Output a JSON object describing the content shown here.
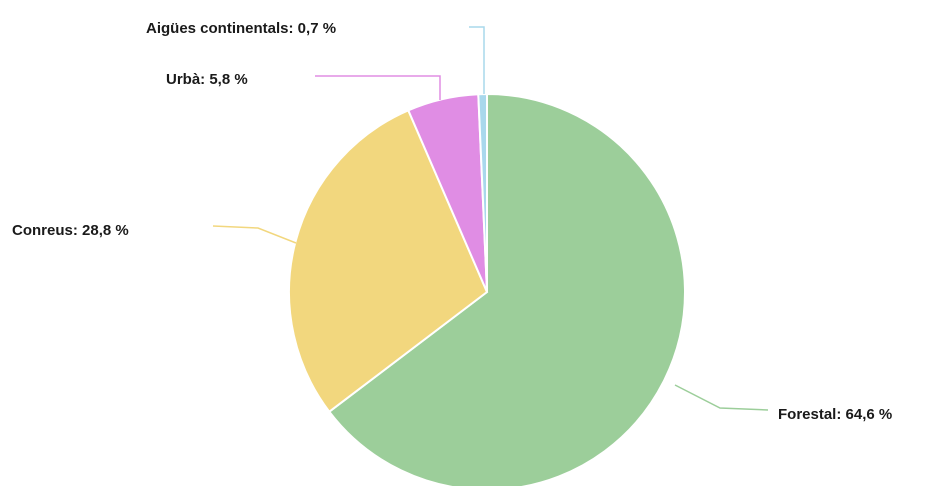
{
  "chart_data": {
    "type": "pie",
    "title": "",
    "slices": [
      {
        "name": "Forestal",
        "value": 64.6,
        "label": "Forestal: 64,6 %",
        "color": "#9cce9a"
      },
      {
        "name": "Conreus",
        "value": 28.8,
        "label": "Conreus: 28,8 %",
        "color": "#f2d77e"
      },
      {
        "name": "Urbà",
        "value": 5.8,
        "label": "Urbà: 5,8 %",
        "color": "#e08de4"
      },
      {
        "name": "Aigües continentals",
        "value": 0.7,
        "label": "Aigües continentals: 0,7 %",
        "color": "#a9d8ec"
      }
    ],
    "legend": "none",
    "start_angle": "12 o'clock",
    "direction": "clockwise"
  }
}
